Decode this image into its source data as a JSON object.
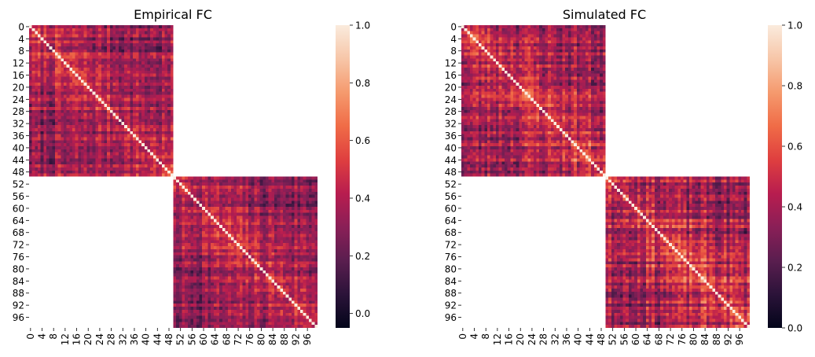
{
  "chart_data": [
    {
      "type": "heatmap",
      "title": "Empirical FC",
      "n": 100,
      "blocks": [
        [
          0,
          49
        ],
        [
          50,
          99
        ]
      ],
      "off_block_masked": true,
      "diagonal_value": 1.0,
      "x_tick_labels": [
        "0",
        "4",
        "8",
        "12",
        "16",
        "20",
        "24",
        "28",
        "32",
        "36",
        "40",
        "44",
        "48",
        "52",
        "56",
        "60",
        "64",
        "68",
        "72",
        "76",
        "80",
        "84",
        "88",
        "92",
        "96"
      ],
      "y_tick_labels": [
        "0",
        "4",
        "8",
        "12",
        "16",
        "20",
        "24",
        "28",
        "32",
        "36",
        "40",
        "44",
        "48",
        "52",
        "56",
        "60",
        "64",
        "68",
        "72",
        "76",
        "80",
        "84",
        "88",
        "92",
        "96"
      ],
      "colorbar": {
        "vmin": -0.05,
        "vmax": 1.0,
        "ticks": [
          "0.0",
          "0.2",
          "0.4",
          "0.6",
          "0.8",
          "1.0"
        ],
        "tick_values": [
          0.0,
          0.2,
          0.4,
          0.6,
          0.8,
          1.0
        ]
      },
      "colormap": "rocket",
      "approx_value_range": [
        0.0,
        0.75
      ],
      "seed": 7
    },
    {
      "type": "heatmap",
      "title": "Simulated FC",
      "n": 100,
      "blocks": [
        [
          0,
          49
        ],
        [
          50,
          99
        ]
      ],
      "off_block_masked": true,
      "diagonal_value": 1.0,
      "x_tick_labels": [
        "0",
        "4",
        "8",
        "12",
        "16",
        "20",
        "24",
        "28",
        "32",
        "36",
        "40",
        "44",
        "48",
        "52",
        "56",
        "60",
        "64",
        "68",
        "72",
        "76",
        "80",
        "84",
        "88",
        "92",
        "96"
      ],
      "y_tick_labels": [
        "0",
        "4",
        "8",
        "12",
        "16",
        "20",
        "24",
        "28",
        "32",
        "36",
        "40",
        "44",
        "48",
        "52",
        "56",
        "60",
        "64",
        "68",
        "72",
        "76",
        "80",
        "84",
        "88",
        "92",
        "96"
      ],
      "colorbar": {
        "vmin": 0.0,
        "vmax": 1.0,
        "ticks": [
          "0.0",
          "0.2",
          "0.4",
          "0.6",
          "0.8",
          "1.0"
        ],
        "tick_values": [
          0.0,
          0.2,
          0.4,
          0.6,
          0.8,
          1.0
        ]
      },
      "colormap": "rocket",
      "approx_value_range": [
        0.05,
        0.85
      ],
      "seed": 23
    }
  ],
  "colors": {
    "rocket_stops": [
      "#03051a",
      "#2b1339",
      "#5a1e4f",
      "#8a1f57",
      "#b81d4f",
      "#df3f3f",
      "#f06c47",
      "#f59a6e",
      "#f7c6a8",
      "#faebdd"
    ]
  }
}
